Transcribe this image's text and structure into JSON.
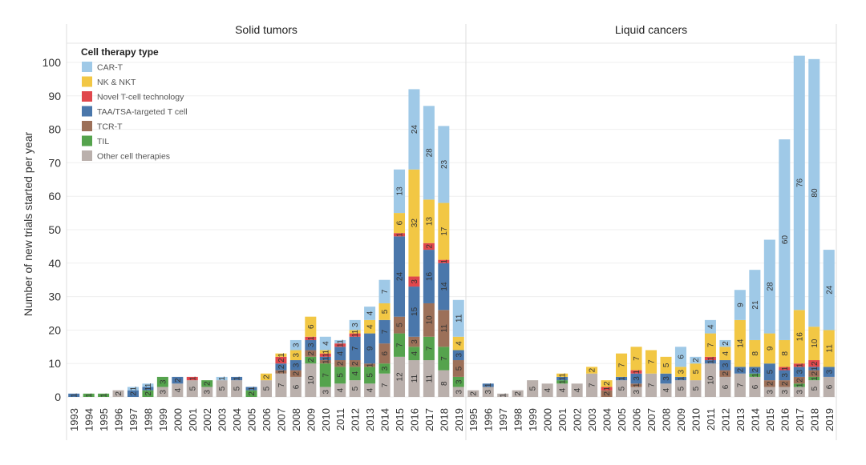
{
  "chart_data": {
    "type": "bar",
    "stacked": true,
    "ylabel": "Number of new trials started per year",
    "ylim": [
      0,
      105
    ],
    "yticks": [
      0,
      10,
      20,
      30,
      40,
      50,
      60,
      70,
      80,
      90,
      100
    ],
    "grid": true,
    "legend": {
      "title": "Cell therapy type",
      "position": "top-left",
      "entries": [
        {
          "name": "CAR-T",
          "color": "#9fc9e7"
        },
        {
          "name": "NK & NKT",
          "color": "#f2c744"
        },
        {
          "name": "Novel T-cell technology",
          "color": "#e0474c"
        },
        {
          "name": "TAA/TSA-targeted T cell",
          "color": "#4a77ab"
        },
        {
          "name": "TCR-T",
          "color": "#9c7059"
        },
        {
          "name": "TIL",
          "color": "#55a34d"
        },
        {
          "name": "Other cell therapies",
          "color": "#bab0ac"
        }
      ]
    },
    "stack_order": [
      "Other cell therapies",
      "TIL",
      "TCR-T",
      "TAA/TSA-targeted T cell",
      "Novel T-cell technology",
      "NK & NKT",
      "CAR-T"
    ],
    "panels": [
      {
        "title": "Solid tumors",
        "categories": [
          "1993",
          "1994",
          "1995",
          "1996",
          "1997",
          "1998",
          "1999",
          "2000",
          "2001",
          "2002",
          "2003",
          "2004",
          "2005",
          "2006",
          "2007",
          "2008",
          "2009",
          "2010",
          "2011",
          "2012",
          "2013",
          "2014",
          "2015",
          "2016",
          "2017",
          "2018",
          "2019"
        ],
        "series": [
          {
            "name": "Other cell therapies",
            "values": [
              0,
              0,
              0,
              2,
              0,
              0,
              3,
              4,
              5,
              3,
              5,
              5,
              0,
              5,
              7,
              6,
              10,
              3,
              4,
              5,
              4,
              7,
              12,
              11,
              11,
              8,
              3
            ]
          },
          {
            "name": "TIL",
            "values": [
              0,
              1,
              1,
              0,
              0,
              2,
              3,
              0,
              0,
              2,
              0,
              0,
              2,
              0,
              0,
              0,
              2,
              7,
              5,
              4,
              5,
              3,
              7,
              4,
              7,
              7,
              3
            ]
          },
          {
            "name": "TCR-T",
            "values": [
              0,
              0,
              0,
              0,
              0,
              0,
              0,
              0,
              0,
              0,
              0,
              0,
              0,
              0,
              1,
              2,
              2,
              1,
              2,
              2,
              1,
              6,
              5,
              3,
              10,
              11,
              5
            ]
          },
          {
            "name": "TAA/TSA-targeted T cell",
            "values": [
              1,
              0,
              0,
              0,
              2,
              1,
              0,
              2,
              0,
              0,
              0,
              1,
              1,
              0,
              2,
              3,
              3,
              1,
              4,
              7,
              9,
              7,
              24,
              15,
              16,
              14,
              3
            ]
          },
          {
            "name": "Novel T-cell technology",
            "values": [
              0,
              0,
              0,
              0,
              0,
              0,
              0,
              0,
              1,
              0,
              0,
              0,
              0,
              0,
              2,
              0,
              1,
              1,
              1,
              1,
              0,
              0,
              1,
              3,
              2,
              1,
              0
            ]
          },
          {
            "name": "NK & NKT",
            "values": [
              0,
              0,
              0,
              0,
              0,
              0,
              0,
              0,
              0,
              0,
              0,
              0,
              0,
              2,
              1,
              3,
              6,
              1,
              0,
              1,
              4,
              5,
              6,
              32,
              13,
              17,
              4
            ]
          },
          {
            "name": "CAR-T",
            "values": [
              0,
              0,
              0,
              0,
              1,
              1,
              0,
              0,
              0,
              0,
              1,
              0,
              0,
              0,
              0,
              3,
              0,
              4,
              1,
              3,
              4,
              7,
              13,
              24,
              28,
              23,
              11
            ]
          }
        ]
      },
      {
        "title": "Liquid cancers",
        "categories": [
          "1995",
          "1996",
          "1997",
          "1998",
          "1999",
          "2000",
          "2001",
          "2002",
          "2003",
          "2004",
          "2005",
          "2006",
          "2007",
          "2008",
          "2009",
          "2010",
          "2011",
          "2012",
          "2013",
          "2014",
          "2015",
          "2016",
          "2017",
          "2018",
          "2019"
        ],
        "series": [
          {
            "name": "Other cell therapies",
            "values": [
              2,
              3,
              1,
              2,
              5,
              4,
              4,
              4,
              7,
              0,
              5,
              3,
              7,
              4,
              5,
              5,
              10,
              6,
              7,
              6,
              3,
              3,
              3,
              5,
              6
            ]
          },
          {
            "name": "TIL",
            "values": [
              0,
              0,
              0,
              0,
              0,
              0,
              1,
              0,
              0,
              0,
              0,
              0,
              0,
              0,
              0,
              0,
              0,
              0,
              0,
              1,
              0,
              0,
              1,
              1,
              0
            ]
          },
          {
            "name": "TCR-T",
            "values": [
              0,
              0,
              0,
              0,
              0,
              0,
              0,
              0,
              0,
              2,
              0,
              1,
              0,
              0,
              0,
              0,
              0,
              2,
              0,
              0,
              2,
              2,
              2,
              2,
              0
            ]
          },
          {
            "name": "TAA/TSA-targeted T cell",
            "values": [
              0,
              1,
              0,
              0,
              0,
              0,
              1,
              0,
              0,
              0,
              1,
              3,
              0,
              3,
              1,
              0,
              1,
              3,
              2,
              2,
              5,
              3,
              3,
              1,
              3
            ]
          },
          {
            "name": "Novel T-cell technology",
            "values": [
              0,
              0,
              0,
              0,
              0,
              0,
              0,
              0,
              0,
              1,
              0,
              1,
              0,
              0,
              0,
              0,
              1,
              0,
              0,
              0,
              0,
              1,
              1,
              2,
              0
            ]
          },
          {
            "name": "NK & NKT",
            "values": [
              0,
              0,
              0,
              0,
              0,
              0,
              1,
              0,
              2,
              2,
              7,
              7,
              7,
              5,
              3,
              5,
              7,
              4,
              14,
              8,
              9,
              8,
              16,
              10,
              11
            ]
          },
          {
            "name": "CAR-T",
            "values": [
              0,
              0,
              0,
              0,
              0,
              0,
              0,
              0,
              0,
              0,
              0,
              0,
              0,
              0,
              6,
              2,
              4,
              2,
              9,
              21,
              28,
              60,
              76,
              80,
              24
            ]
          }
        ]
      }
    ]
  }
}
